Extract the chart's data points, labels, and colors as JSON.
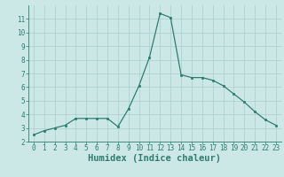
{
  "x": [
    0,
    1,
    2,
    3,
    4,
    5,
    6,
    7,
    8,
    9,
    10,
    11,
    12,
    13,
    14,
    15,
    16,
    17,
    18,
    19,
    20,
    21,
    22,
    23
  ],
  "y": [
    2.5,
    2.8,
    3.0,
    3.2,
    3.7,
    3.7,
    3.7,
    3.7,
    3.1,
    4.4,
    6.1,
    8.2,
    11.4,
    11.1,
    6.9,
    6.7,
    6.7,
    6.5,
    6.1,
    5.5,
    4.9,
    4.2,
    3.6,
    3.2
  ],
  "xlabel": "Humidex (Indice chaleur)",
  "xlim": [
    -0.5,
    23.5
  ],
  "ylim": [
    2,
    12
  ],
  "yticks": [
    2,
    3,
    4,
    5,
    6,
    7,
    8,
    9,
    10,
    11
  ],
  "xticks": [
    0,
    1,
    2,
    3,
    4,
    5,
    6,
    7,
    8,
    9,
    10,
    11,
    12,
    13,
    14,
    15,
    16,
    17,
    18,
    19,
    20,
    21,
    22,
    23
  ],
  "line_color": "#2e7d6e",
  "marker_color": "#2e7d6e",
  "bg_color": "#cce8e6",
  "grid_color": "#aacfcc",
  "tick_label_color": "#2e7d6e",
  "xlabel_color": "#2e7d6e",
  "tick_fontsize": 5.5,
  "xlabel_fontsize": 7.5
}
